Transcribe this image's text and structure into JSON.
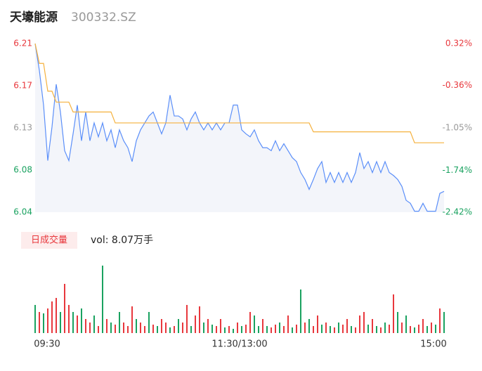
{
  "header": {
    "name": "天壕能源",
    "code": "300332.SZ"
  },
  "chart_data": {
    "type": "intraday",
    "prices": [
      6.21,
      6.183,
      6.148,
      6.092,
      6.126,
      6.169,
      6.141,
      6.102,
      6.092,
      6.119,
      6.148,
      6.112,
      6.141,
      6.112,
      6.13,
      6.116,
      6.13,
      6.112,
      6.123,
      6.105,
      6.123,
      6.112,
      6.105,
      6.091,
      6.112,
      6.123,
      6.13,
      6.137,
      6.141,
      6.13,
      6.119,
      6.13,
      6.158,
      6.137,
      6.137,
      6.134,
      6.123,
      6.134,
      6.141,
      6.13,
      6.123,
      6.13,
      6.123,
      6.13,
      6.123,
      6.13,
      6.13,
      6.148,
      6.148,
      6.123,
      6.119,
      6.116,
      6.123,
      6.112,
      6.105,
      6.105,
      6.102,
      6.112,
      6.102,
      6.109,
      6.102,
      6.095,
      6.091,
      6.08,
      6.073,
      6.063,
      6.073,
      6.084,
      6.091,
      6.07,
      6.08,
      6.07,
      6.08,
      6.07,
      6.08,
      6.07,
      6.08,
      6.1,
      6.084,
      6.091,
      6.08,
      6.091,
      6.08,
      6.091,
      6.08,
      6.077,
      6.073,
      6.066,
      6.052,
      6.049,
      6.041,
      6.041,
      6.049,
      6.041,
      6.041,
      6.041,
      6.059,
      6.061
    ],
    "average": [
      6.21,
      6.19,
      6.19,
      6.162,
      6.162,
      6.151,
      6.151,
      6.151,
      6.151,
      6.141,
      6.141,
      6.141,
      6.141,
      6.141,
      6.141,
      6.141,
      6.141,
      6.141,
      6.141,
      6.13,
      6.13,
      6.13,
      6.13,
      6.13,
      6.13,
      6.13,
      6.13,
      6.13,
      6.13,
      6.13,
      6.13,
      6.13,
      6.13,
      6.13,
      6.13,
      6.13,
      6.13,
      6.13,
      6.13,
      6.13,
      6.13,
      6.13,
      6.13,
      6.13,
      6.13,
      6.13,
      6.13,
      6.13,
      6.13,
      6.13,
      6.13,
      6.13,
      6.13,
      6.13,
      6.13,
      6.13,
      6.13,
      6.13,
      6.13,
      6.13,
      6.13,
      6.13,
      6.13,
      6.13,
      6.13,
      6.13,
      6.121,
      6.121,
      6.121,
      6.121,
      6.121,
      6.121,
      6.121,
      6.121,
      6.121,
      6.121,
      6.121,
      6.121,
      6.121,
      6.121,
      6.121,
      6.121,
      6.121,
      6.121,
      6.121,
      6.121,
      6.121,
      6.121,
      6.121,
      6.121,
      6.11,
      6.11,
      6.11,
      6.11,
      6.11,
      6.11,
      6.11,
      6.11
    ],
    "price_color": "#5b8ff9",
    "average_color": "#f5b13d",
    "area_color": "#f3f5fa",
    "ylim": [
      6.04,
      6.21
    ],
    "yticks": [
      {
        "value": 6.21,
        "label": "6.21"
      },
      {
        "value": 6.1675,
        "label": "6.17"
      },
      {
        "value": 6.125,
        "label": "6.13"
      },
      {
        "value": 6.0825,
        "label": "6.08"
      },
      {
        "value": 6.04,
        "label": "6.04"
      }
    ],
    "y2lim": [
      -2.42,
      0.32
    ],
    "y2ticks": [
      {
        "value": 0.32,
        "label": "0.32%"
      },
      {
        "value": -0.36,
        "label": "-0.36%"
      },
      {
        "value": -1.05,
        "label": "-1.05%"
      },
      {
        "value": -1.74,
        "label": "-1.74%"
      },
      {
        "value": -2.42,
        "label": "-2.42%"
      }
    ],
    "tick_colors": [
      "#e8383d",
      "#e8383d",
      "#999999",
      "#1aa260",
      "#1aa260"
    ],
    "x_labels": [
      "09:30",
      "11:30/13:00",
      "15:00"
    ],
    "volume_title": "日成交量",
    "volume_label": "vol: 8.07万手",
    "volume": {
      "values": [
        1600,
        1200,
        1120,
        1400,
        1800,
        2000,
        1200,
        2800,
        1600,
        1200,
        1000,
        1400,
        800,
        600,
        1000,
        400,
        3840,
        800,
        600,
        480,
        1200,
        600,
        400,
        1520,
        800,
        600,
        400,
        1200,
        480,
        400,
        800,
        600,
        320,
        400,
        800,
        600,
        1600,
        400,
        1000,
        1520,
        600,
        800,
        480,
        400,
        800,
        320,
        400,
        240,
        600,
        400,
        480,
        1200,
        1000,
        400,
        800,
        400,
        320,
        480,
        600,
        400,
        1000,
        320,
        480,
        2480,
        600,
        800,
        400,
        1000,
        480,
        600,
        400,
        320,
        600,
        480,
        800,
        400,
        320,
        1000,
        1200,
        480,
        800,
        400,
        320,
        600,
        480,
        2200,
        1200,
        600,
        1000,
        400,
        320,
        480,
        800,
        400,
        600,
        480,
        1400,
        1200
      ],
      "rising": [
        false,
        true,
        false,
        true,
        true,
        true,
        false,
        true,
        true,
        false,
        true,
        false,
        true,
        true,
        false,
        true,
        false,
        true,
        false,
        true,
        false,
        true,
        true,
        true,
        false,
        true,
        true,
        false,
        true,
        false,
        true,
        true,
        false,
        true,
        false,
        true,
        true,
        false,
        true,
        true,
        false,
        true,
        false,
        true,
        true,
        false,
        true,
        false,
        true,
        false,
        true,
        true,
        false,
        false,
        true,
        false,
        true,
        true,
        false,
        true,
        true,
        false,
        true,
        false,
        true,
        false,
        true,
        true,
        false,
        true,
        false,
        true,
        false,
        true,
        true,
        false,
        true,
        true,
        true,
        false,
        true,
        false,
        true,
        false,
        true,
        true,
        false,
        true,
        false,
        true,
        false,
        true,
        true,
        false,
        true,
        false,
        true,
        false
      ],
      "up_color": "#e8383d",
      "down_color": "#1aa260"
    }
  }
}
